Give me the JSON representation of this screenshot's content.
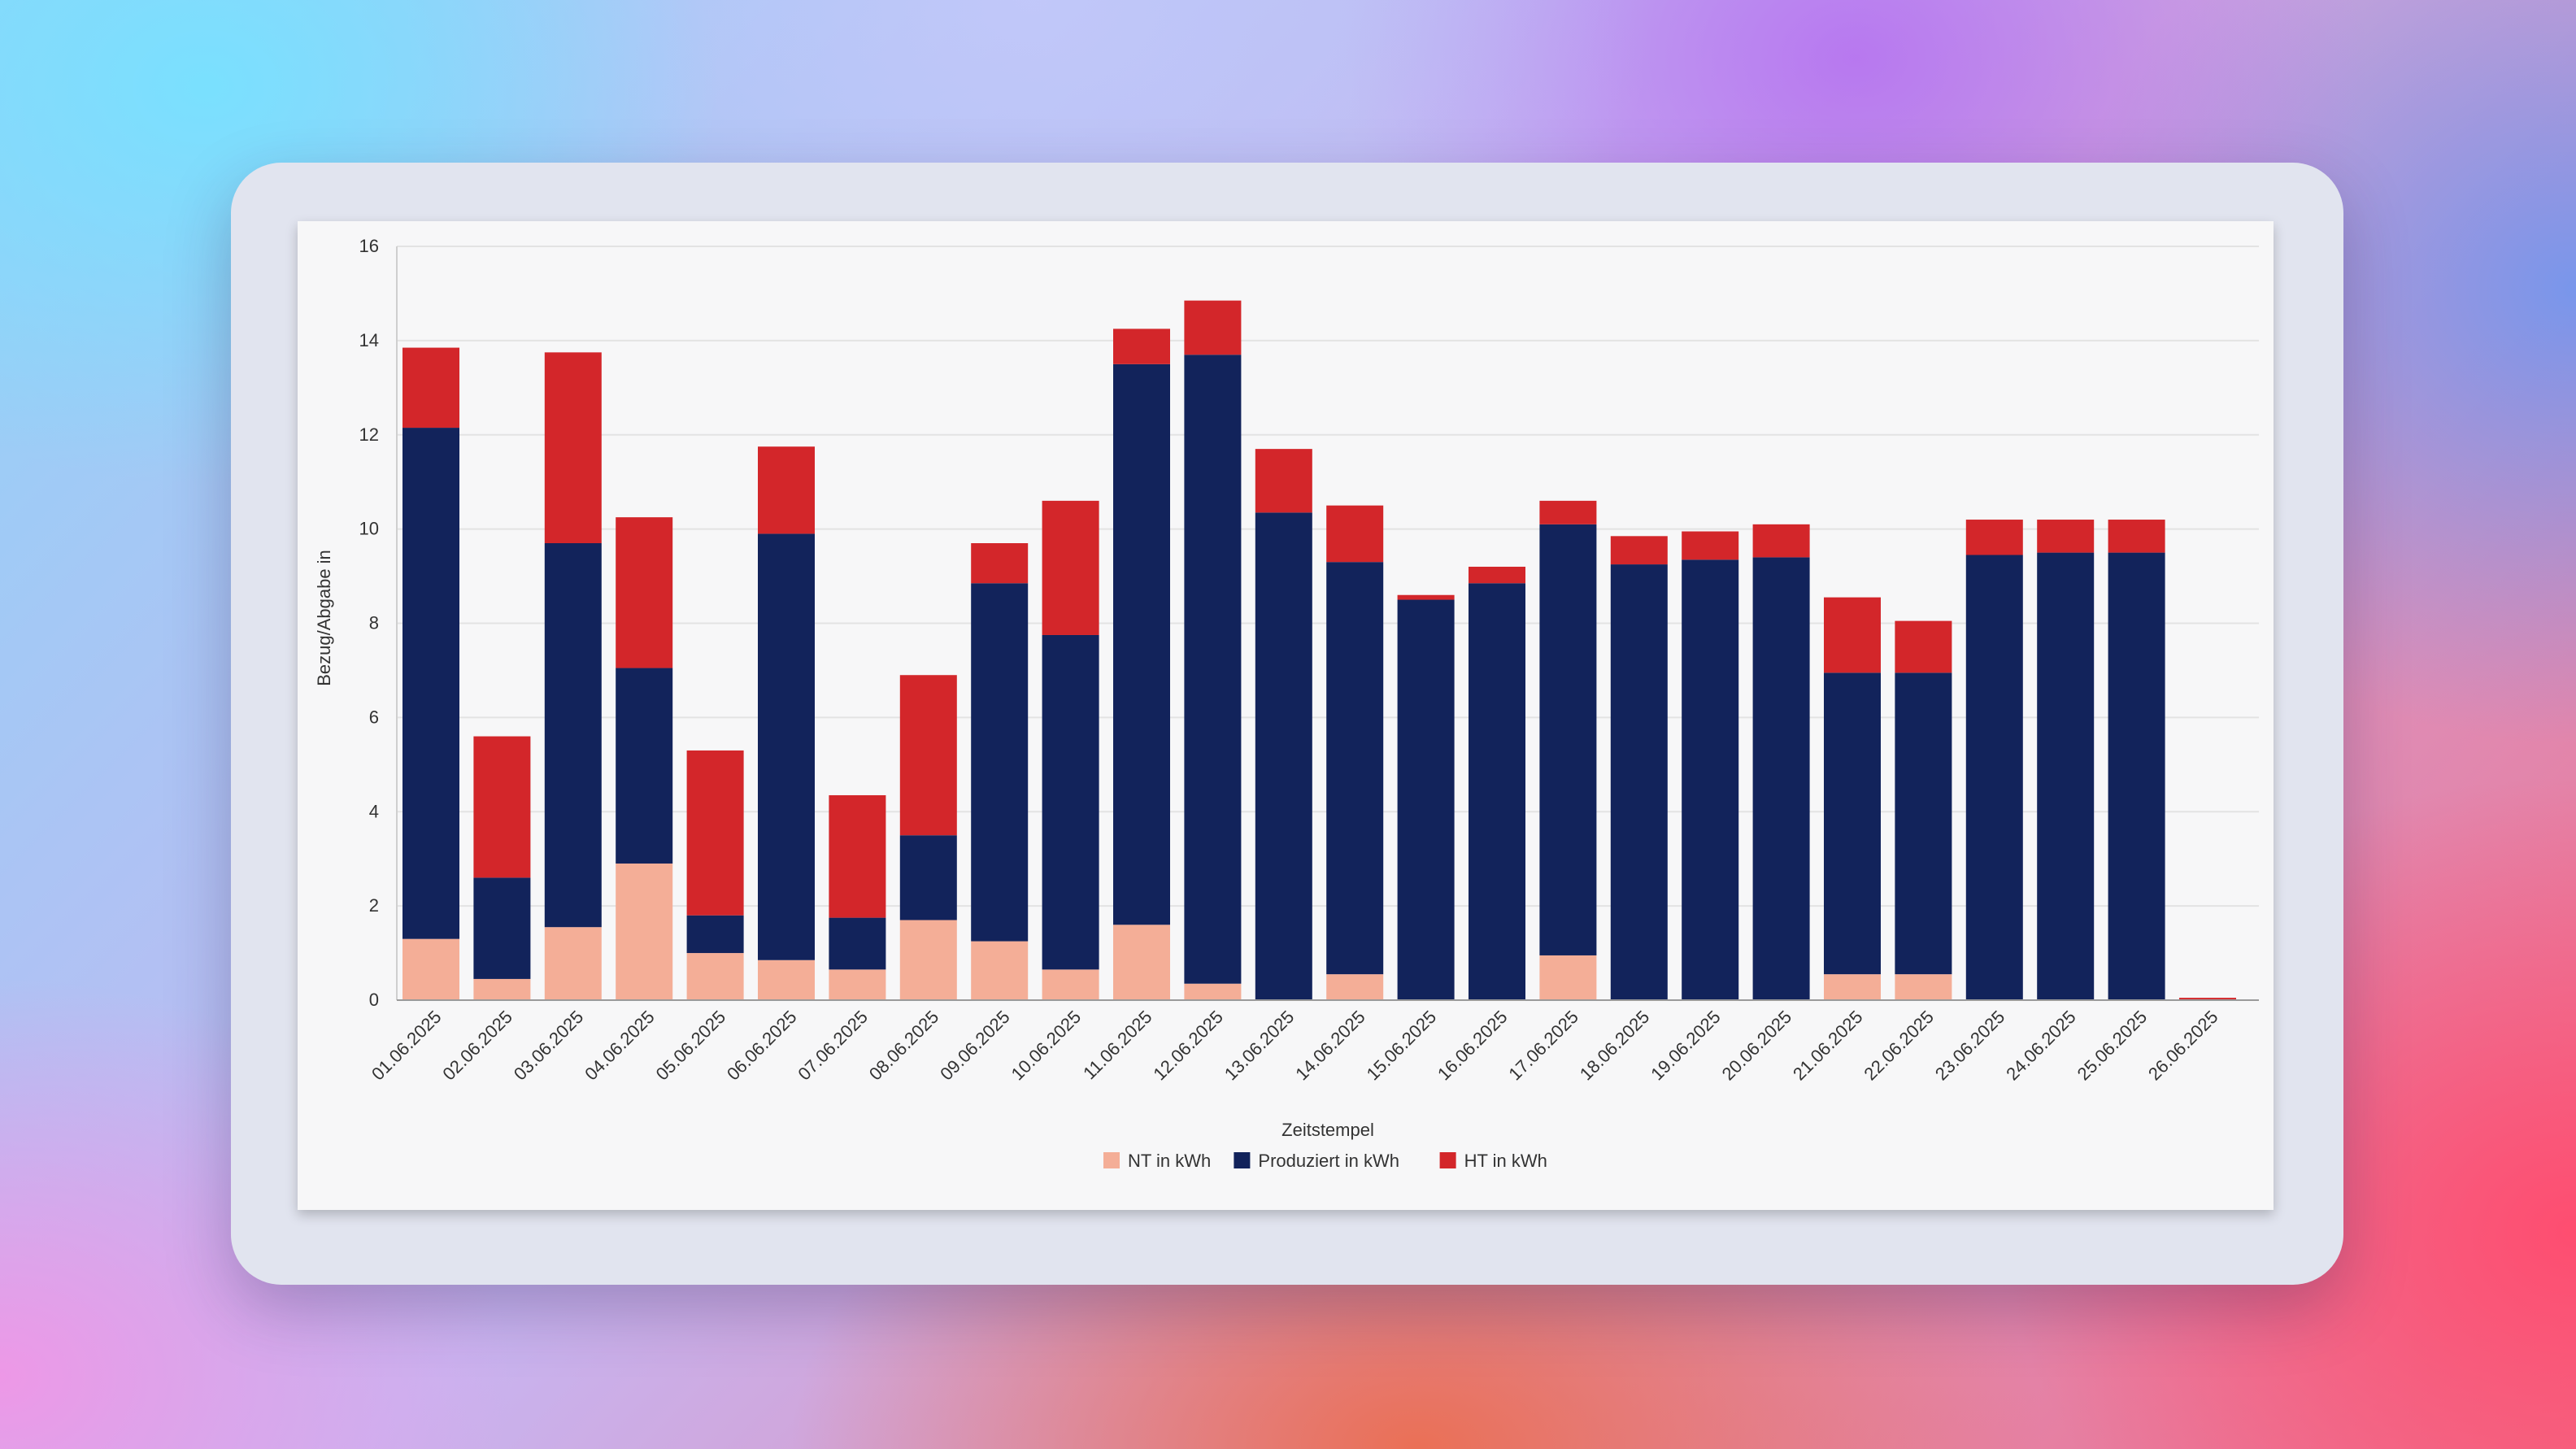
{
  "chart_data": {
    "type": "bar",
    "stacked": true,
    "title": "",
    "xlabel": "Zeitstempel",
    "ylabel": "Bezug/Abgabe in",
    "ylim": [
      0,
      16
    ],
    "yticks": [
      0,
      2,
      4,
      6,
      8,
      10,
      12,
      14,
      16
    ],
    "grid": true,
    "legend_position": "bottom",
    "categories": [
      "01.06.2025",
      "02.06.2025",
      "03.06.2025",
      "04.06.2025",
      "05.06.2025",
      "06.06.2025",
      "07.06.2025",
      "08.06.2025",
      "09.06.2025",
      "10.06.2025",
      "11.06.2025",
      "12.06.2025",
      "13.06.2025",
      "14.06.2025",
      "15.06.2025",
      "16.06.2025",
      "17.06.2025",
      "18.06.2025",
      "19.06.2025",
      "20.06.2025",
      "21.06.2025",
      "22.06.2025",
      "23.06.2025",
      "24.06.2025",
      "25.06.2025",
      "26.06.2025"
    ],
    "series": [
      {
        "name": "NT in kWh",
        "color": "#f4ae97",
        "values": [
          1.3,
          0.45,
          1.55,
          2.9,
          1.0,
          0.85,
          0.65,
          1.7,
          1.25,
          0.65,
          1.6,
          0.35,
          0,
          0.55,
          0,
          0,
          0.95,
          0,
          0,
          0,
          0.55,
          0.55,
          0,
          0,
          0,
          0
        ]
      },
      {
        "name": "Produziert in kWh",
        "color": "#12235b",
        "values": [
          10.85,
          2.15,
          8.15,
          4.15,
          0.8,
          9.05,
          1.1,
          1.8,
          7.6,
          7.1,
          11.9,
          13.35,
          10.35,
          8.75,
          8.5,
          8.85,
          9.15,
          9.25,
          9.35,
          9.4,
          6.4,
          6.4,
          9.45,
          9.5,
          9.5,
          0
        ]
      },
      {
        "name": "HT in kWh",
        "color": "#d3262a",
        "values": [
          1.7,
          3.0,
          4.05,
          3.2,
          3.5,
          1.85,
          2.6,
          3.4,
          0.85,
          2.85,
          0.75,
          1.15,
          1.35,
          1.2,
          0.1,
          0.35,
          0.5,
          0.6,
          0.6,
          0.7,
          1.6,
          1.1,
          0.75,
          0.7,
          0.7,
          0.05
        ]
      }
    ]
  }
}
